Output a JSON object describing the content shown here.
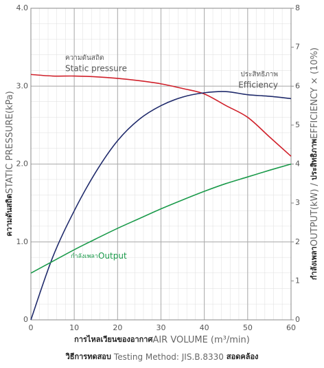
{
  "chart_data": {
    "type": "line",
    "x": [
      0,
      5,
      10,
      15,
      20,
      25,
      30,
      35,
      40,
      45,
      50,
      55,
      60
    ],
    "xlim": [
      0,
      60
    ],
    "xticks": [
      0,
      10,
      20,
      30,
      40,
      50,
      60
    ],
    "ylim": [
      0,
      4
    ],
    "yticks": [
      0,
      {
        "value": 1,
        "label": "1.0"
      },
      {
        "value": 2,
        "label": "2.0"
      },
      {
        "value": 3,
        "label": "3.0"
      },
      {
        "value": 4,
        "label": "4.0"
      }
    ],
    "y2lim": [
      0,
      8
    ],
    "y2ticks": [
      0,
      1,
      2,
      3,
      4,
      5,
      6,
      7,
      8
    ],
    "grid": true,
    "ylabel_th": "ความดันสถิต",
    "ylabel": "STATIC PRESSURE(kPa)",
    "y2label_th1": "กำลังเพลา",
    "y2label1": "OUTPUT(kW) / ",
    "y2label_th2": "ประสิทธิภาพ",
    "y2label2": "EFFICIENCY × (10%)",
    "xlabel_th": "การไหลเวียนของอากาศ",
    "xlabel": "AIR VOLUME (m³/min)",
    "footer_th1": "วิธีการทดสอบ",
    "footer": "Testing Method: JIS.B.8330",
    "footer_th2": "สอดคล้อง",
    "series": [
      {
        "name": "Static pressure",
        "name_th": "ความดันสถิต",
        "color": "#d0202a",
        "axis": "y",
        "values": [
          3.15,
          3.13,
          3.13,
          3.12,
          3.1,
          3.07,
          3.03,
          2.97,
          2.9,
          2.75,
          2.6,
          2.35,
          2.1
        ]
      },
      {
        "name": "Efficiency",
        "name_th": "ประสิทธิภาพ",
        "color": "#1f2a6b",
        "axis": "y2",
        "values": [
          0,
          1.6,
          2.8,
          3.8,
          4.6,
          5.15,
          5.5,
          5.72,
          5.83,
          5.86,
          5.78,
          5.74,
          5.68
        ]
      },
      {
        "name": "Output",
        "name_th": "กำลังเพลา",
        "color": "#1a9a4a",
        "axis": "y2",
        "values": [
          1.2,
          1.5,
          1.8,
          2.08,
          2.35,
          2.6,
          2.85,
          3.08,
          3.3,
          3.5,
          3.67,
          3.84,
          4.0
        ]
      }
    ]
  }
}
